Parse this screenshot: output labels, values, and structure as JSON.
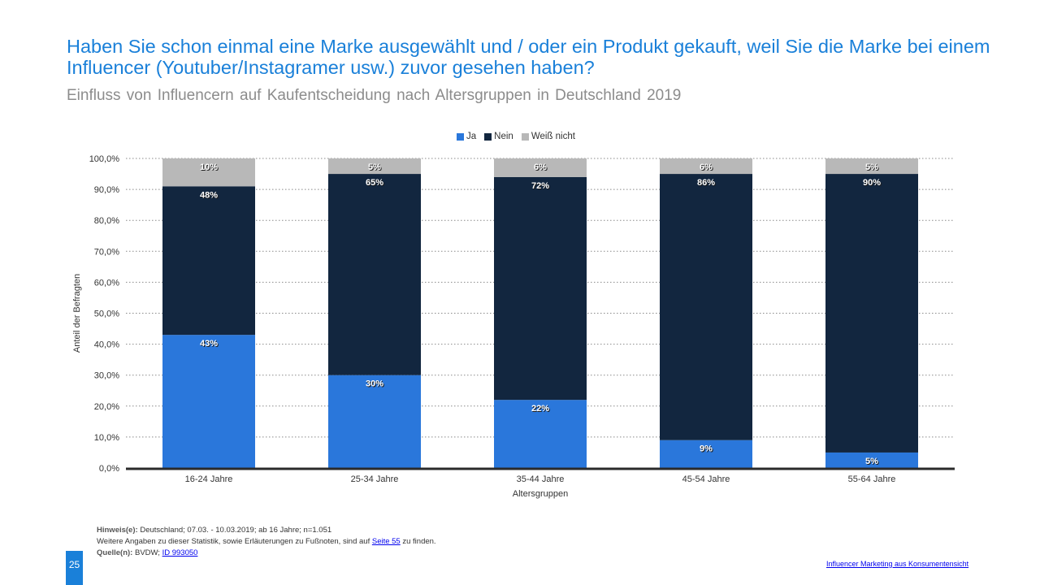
{
  "header": {
    "title": "Haben Sie schon einmal eine Marke ausgewählt und / oder ein Produkt gekauft, weil Sie die Marke bei einem Influencer (Youtuber/Instagramer usw.) zuvor gesehen haben?",
    "subtitle": "Einfluss von Influencern auf Kaufentscheidung nach Altersgruppen  in Deutschland 2019"
  },
  "colors": {
    "ja": "#2a77db",
    "nein": "#12263f",
    "weiss_nicht": "#b8b8b8",
    "title": "#1a80d9"
  },
  "chart_data": {
    "type": "bar",
    "stacked": true,
    "title": "Einfluss von Influencern auf Kaufentscheidung nach Altersgruppen in Deutschland 2019",
    "xlabel": "Altersgruppen",
    "ylabel": "Anteil der Befragten",
    "ylim": [
      0,
      100
    ],
    "yticks": [
      "0,0%",
      "10,0%",
      "20,0%",
      "30,0%",
      "40,0%",
      "50,0%",
      "60,0%",
      "70,0%",
      "80,0%",
      "90,0%",
      "100,0%"
    ],
    "grid": true,
    "legend_position": "top-center",
    "categories": [
      "16-24 Jahre",
      "25-34 Jahre",
      "35-44 Jahre",
      "45-54 Jahre",
      "55-64 Jahre"
    ],
    "series": [
      {
        "name": "Ja",
        "values": [
          43,
          30,
          22,
          9,
          5
        ],
        "labels": [
          "43%",
          "30%",
          "22%",
          "9%",
          "5%"
        ]
      },
      {
        "name": "Nein",
        "values": [
          48,
          65,
          72,
          86,
          90
        ],
        "labels": [
          "48%",
          "65%",
          "72%",
          "86%",
          "90%"
        ]
      },
      {
        "name": "Weiß nicht",
        "values": [
          10,
          5,
          6,
          6,
          5
        ],
        "labels": [
          "10%",
          "5%",
          "6%",
          "6%",
          "5%"
        ]
      }
    ]
  },
  "notes": {
    "hinweis_label": "Hinweis(e):",
    "hinweis_text": " Deutschland; 07.03. - 10.03.2019; ab 16 Jahre; n=1.051",
    "weitere_text_before": "Weitere Angaben zu dieser Statistik, sowie Erläuterungen zu Fußnoten, sind auf ",
    "weitere_link": "Seite 55",
    "weitere_text_after": " zu finden.",
    "quelle_label": "Quelle(n):",
    "quelle_text": " BVDW; ",
    "quelle_link": "ID 993050"
  },
  "footer": {
    "page_number": "25",
    "link": "Influencer Marketing aus Konsumentensicht"
  }
}
